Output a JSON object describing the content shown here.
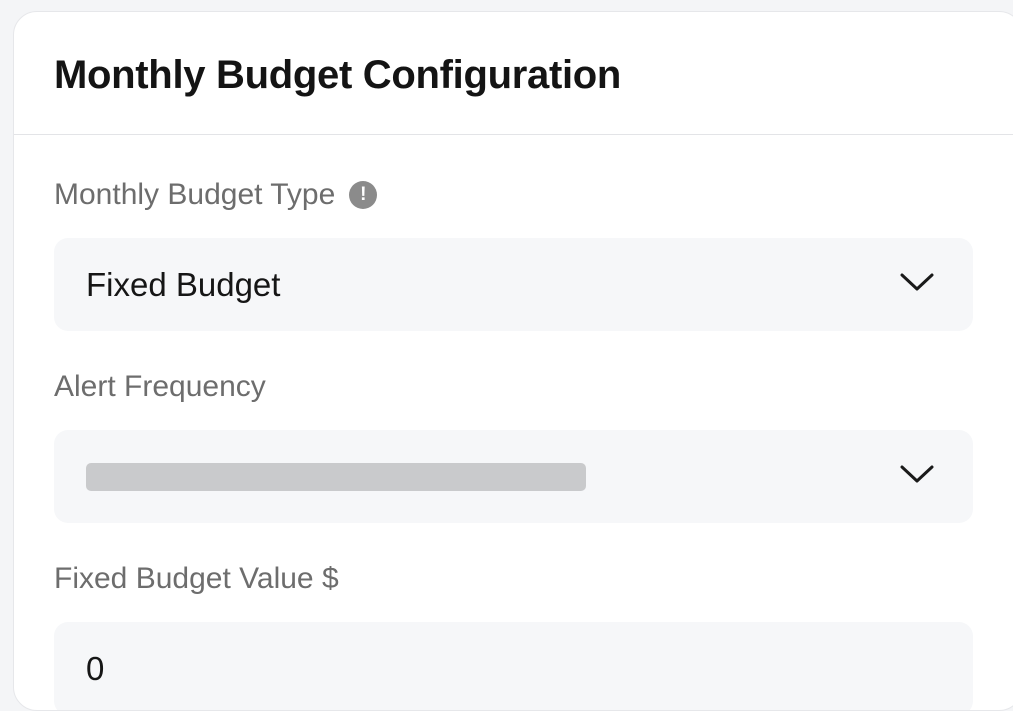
{
  "card": {
    "title": "Monthly Budget Configuration"
  },
  "fields": {
    "budget_type": {
      "label": "Monthly Budget Type",
      "info_icon": "info-icon",
      "value": "Fixed Budget"
    },
    "alert_frequency": {
      "label": "Alert Frequency",
      "value": ""
    },
    "fixed_budget_value": {
      "label": "Fixed Budget Value $",
      "value": "0"
    }
  },
  "icons": {
    "dropdown": "chevron-down-icon",
    "info": "info-icon"
  },
  "colors": {
    "label": "#6d6d6d",
    "title": "#141414",
    "field_bg": "#f6f7f9",
    "placeholder_skeleton": "#c9cacc",
    "info_icon_bg": "#8b8b8b"
  }
}
